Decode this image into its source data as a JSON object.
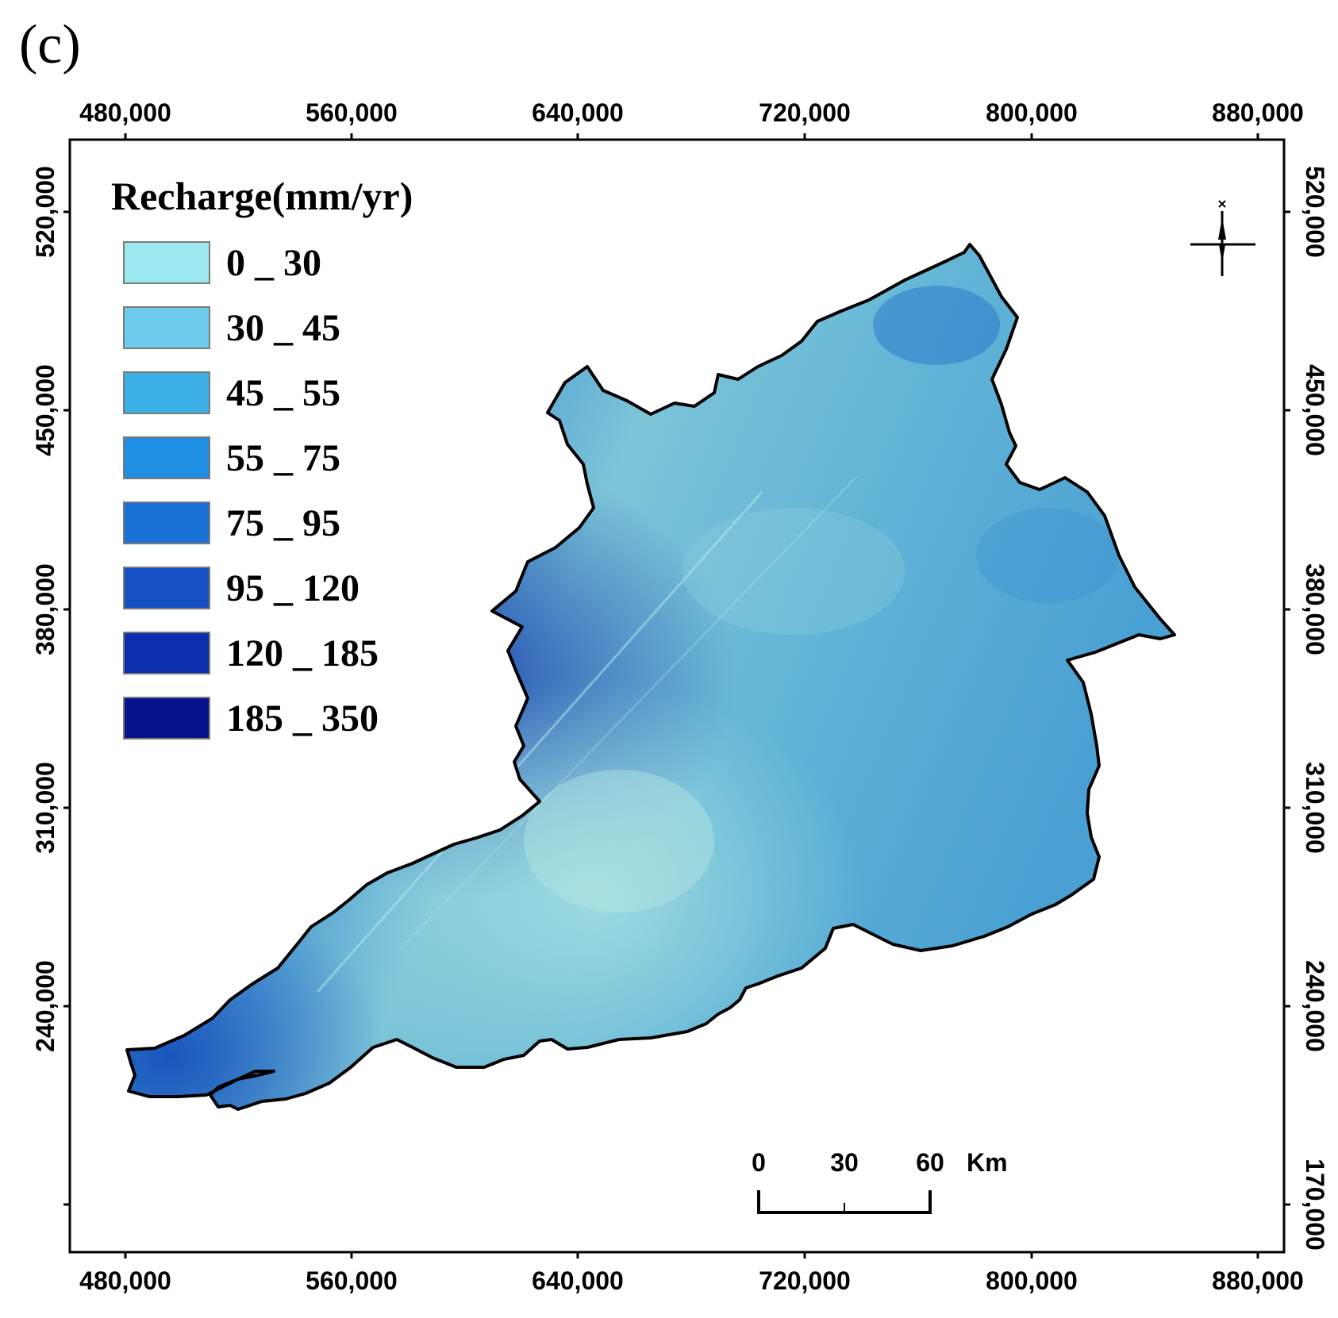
{
  "panel_label": "(c)",
  "axes": {
    "x_ticks": [
      "480,000",
      "560,000",
      "640,000",
      "720,000",
      "800,000",
      "880,000"
    ],
    "y_ticks": [
      "520,000",
      "450,000",
      "380,000",
      "310,000",
      "240,000",
      "170,000"
    ]
  },
  "legend": {
    "title": "Recharge(mm/yr)",
    "items": [
      {
        "label": "0 _ 30",
        "color": "#9be8ee"
      },
      {
        "label": "30 _ 45",
        "color": "#6ccbeb"
      },
      {
        "label": "45 _ 55",
        "color": "#3cafe6"
      },
      {
        "label": "55 _ 75",
        "color": "#1e8fe3"
      },
      {
        "label": "75 _ 95",
        "color": "#1a72d6"
      },
      {
        "label": "95 _ 120",
        "color": "#1450c4"
      },
      {
        "label": "120 _ 185",
        "color": "#0d2fae"
      },
      {
        "label": "185 _ 350",
        "color": "#06138c"
      }
    ]
  },
  "scale_bar": {
    "labels": [
      "0",
      "30",
      "60"
    ],
    "unit": "Km"
  },
  "colors": {
    "frame": "#000000",
    "outline": "#000000"
  }
}
